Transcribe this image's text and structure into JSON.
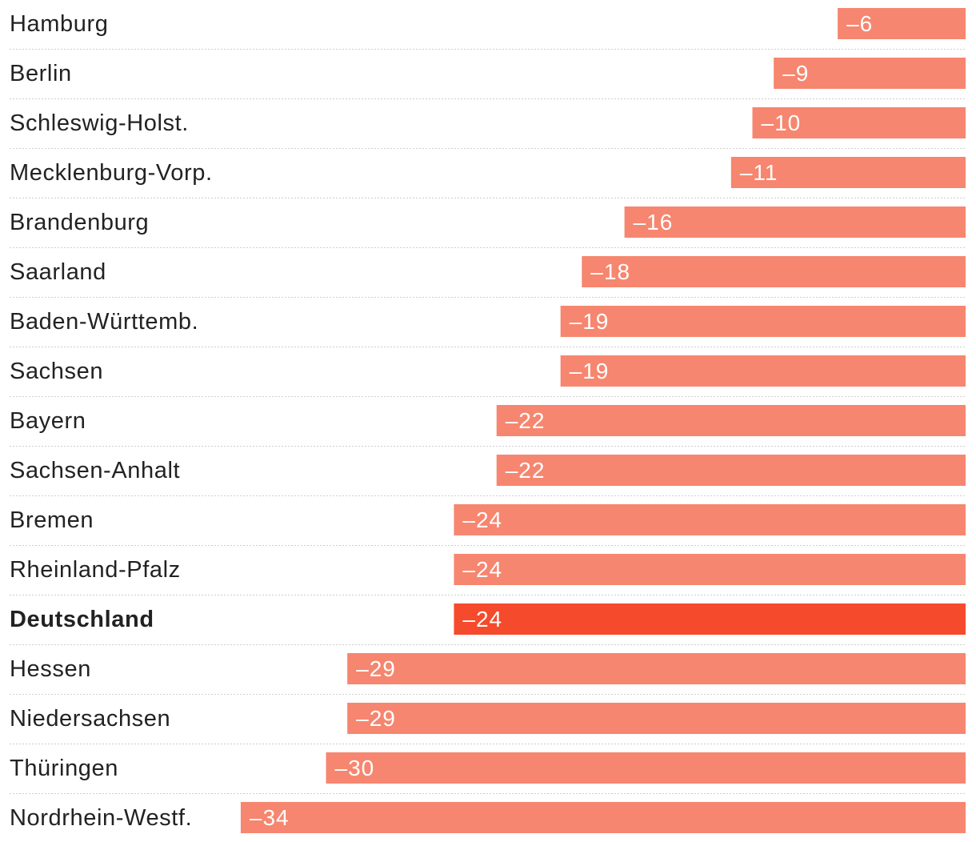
{
  "chart_data": {
    "type": "bar",
    "orientation": "horizontal",
    "categories": [
      "Hamburg",
      "Berlin",
      "Schleswig-Holst.",
      "Mecklenburg-Vorp.",
      "Brandenburg",
      "Saarland",
      "Baden-Württemb.",
      "Sachsen",
      "Bayern",
      "Sachsen-Anhalt",
      "Bremen",
      "Rheinland-Pfalz",
      "Deutschland",
      "Hessen",
      "Niedersachsen",
      "Thüringen",
      "Nordrhein-Westf."
    ],
    "values": [
      -6,
      -9,
      -10,
      -11,
      -16,
      -18,
      -19,
      -19,
      -22,
      -22,
      -24,
      -24,
      -24,
      -29,
      -29,
      -30,
      -34
    ],
    "value_labels": [
      "–6",
      "–9",
      "–10",
      "–11",
      "–16",
      "–18",
      "–19",
      "–19",
      "–22",
      "–22",
      "–24",
      "–24",
      "–24",
      "–29",
      "–29",
      "–30",
      "–34"
    ],
    "highlight": "Deutschland",
    "colors": {
      "bar": "#f6866f",
      "highlight": "#f54a2c",
      "label": "#222222",
      "value_text": "#ffffff"
    },
    "xlim": [
      -45,
      0
    ]
  }
}
